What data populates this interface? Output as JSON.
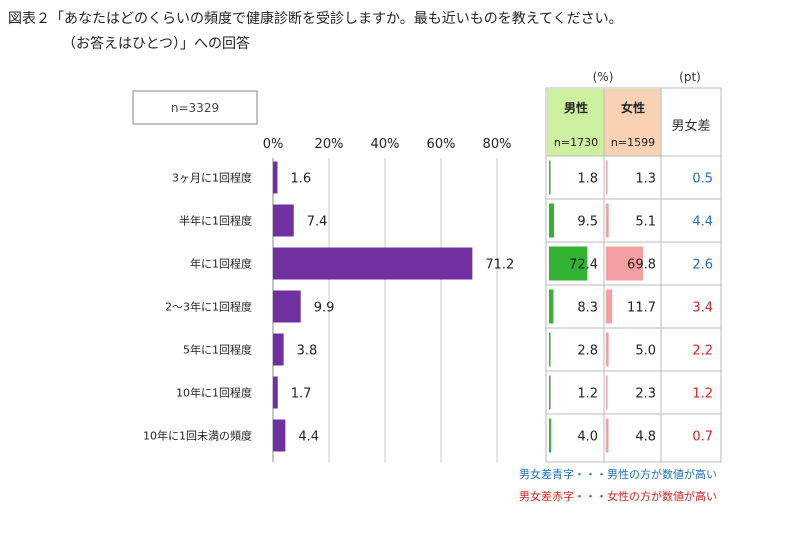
{
  "title_line1": "図表２「あなたはどのくらいの頻度で健康診断を受診しますか。最も近いものを教えてください。",
  "title_line2": "（お答えはひとつ）」への回答",
  "sample_label": "n=3329",
  "unit_pct": "(%)",
  "unit_pt": "(pt)",
  "table_headers": {
    "male": "男性",
    "male_n": "n=1730",
    "female": "女性",
    "female_n": "n=1599",
    "diff": "男女差"
  },
  "legend_notes": {
    "blue": "男女差青字・・・男性の方が数値が高い",
    "red": "男女差赤字・・・女性の方が数値が高い"
  },
  "colors": {
    "bar": "#7030A0",
    "male_bar": "#33B233",
    "female_bar": "#F4A0A0",
    "male_header_bg": "#CCF0A0",
    "female_header_bg": "#F9D2B4",
    "diff_blue": "#1F6FC0",
    "diff_red": "#E02020"
  },
  "chart_data": {
    "type": "bar",
    "orientation": "horizontal",
    "categories": [
      "3ヶ月に1回程度",
      "半年に1回程度",
      "年に1回程度",
      "2～3年に1回程度",
      "5年に1回程度",
      "10年に1回程度",
      "10年に1回未満の頻度"
    ],
    "values": [
      1.6,
      7.4,
      71.2,
      9.9,
      3.8,
      1.7,
      4.4
    ],
    "x_ticks": [
      "0%",
      "20%",
      "40%",
      "60%",
      "80%"
    ],
    "xlim": [
      0,
      80
    ],
    "grid": true,
    "table": {
      "male": [
        1.8,
        9.5,
        72.4,
        8.3,
        2.8,
        1.2,
        4.0
      ],
      "female": [
        1.3,
        5.1,
        69.8,
        11.7,
        5.0,
        2.3,
        4.8
      ],
      "diff": [
        "0.5",
        "4.4",
        "2.6",
        "3.4",
        "2.2",
        "1.2",
        "0.7"
      ],
      "diff_color": [
        "blue",
        "blue",
        "blue",
        "red",
        "red",
        "red",
        "red"
      ]
    }
  }
}
